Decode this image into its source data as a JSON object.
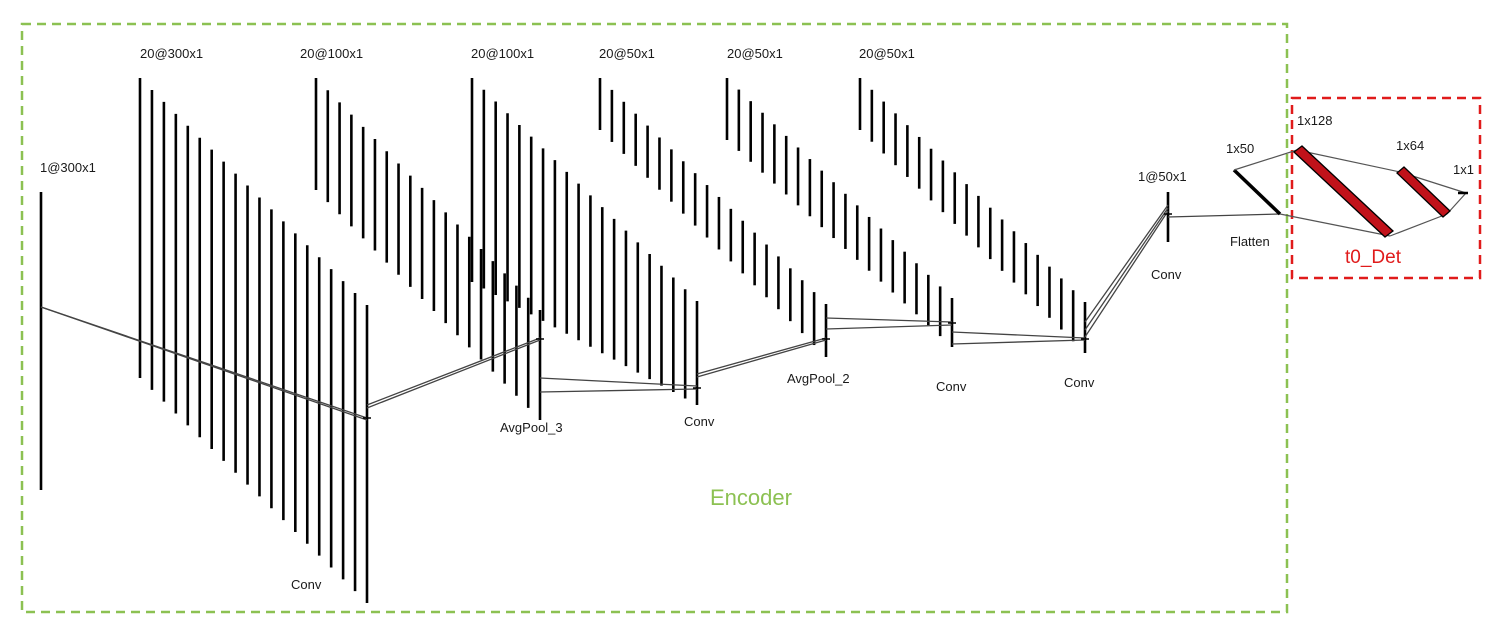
{
  "colors": {
    "encoder_box": "#8cc152",
    "detector_box": "#e01b1b",
    "dense_fill": "#c1121a",
    "ink": "#000000",
    "connector": "#444444"
  },
  "groups": {
    "encoder": {
      "label": "Encoder"
    },
    "detector": {
      "label": "t0_Det"
    }
  },
  "layers": [
    {
      "id": "input",
      "dims": "1@300x1"
    },
    {
      "id": "conv1",
      "dims": "20@300x1",
      "op": "Conv"
    },
    {
      "id": "pool3",
      "dims": "20@100x1",
      "op": "AvgPool_3"
    },
    {
      "id": "conv2",
      "dims": "20@100x1",
      "op": "Conv"
    },
    {
      "id": "pool2",
      "dims": "20@50x1",
      "op": "AvgPool_2"
    },
    {
      "id": "conv3",
      "dims": "20@50x1",
      "op": "Conv"
    },
    {
      "id": "conv4",
      "dims": "20@50x1",
      "op": "Conv"
    },
    {
      "id": "conv5",
      "dims": "1@50x1",
      "op": "Conv"
    },
    {
      "id": "flatten",
      "dims": "1x50",
      "op": "Flatten"
    },
    {
      "id": "dense128",
      "dims": "1x128"
    },
    {
      "id": "dense64",
      "dims": "1x64"
    },
    {
      "id": "output",
      "dims": "1x1"
    }
  ]
}
